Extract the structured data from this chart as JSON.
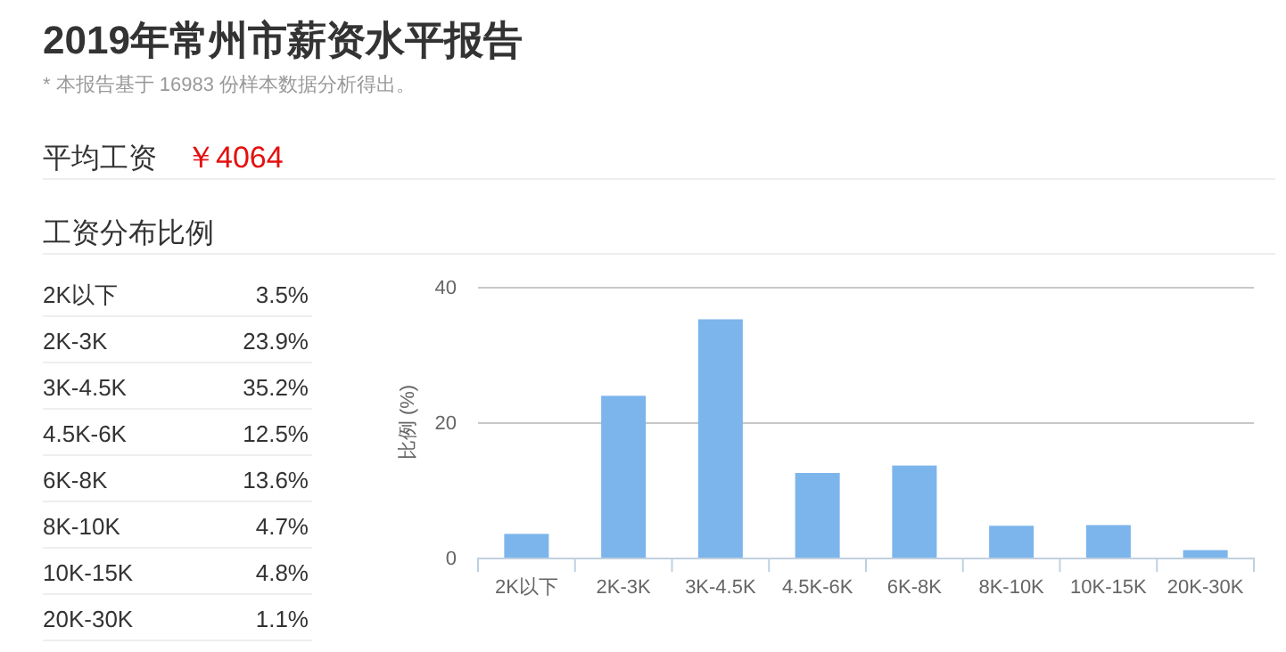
{
  "chart_data": {
    "type": "bar",
    "title": "2019年常州市薪资水平报告",
    "subtitle": "* 本报告基于 16983 份样本数据分析得出。",
    "annotations": [
      "平均工资",
      "￥4064",
      "工资分布比例",
      "3.5%",
      "23.9%",
      "35.2%",
      "12.5%",
      "13.6%",
      "4.7%",
      "4.8%",
      "1.1%"
    ],
    "ylabel": "比例 (%)",
    "categories": [
      "2K以下",
      "2K-3K",
      "3K-4.5K",
      "4.5K-6K",
      "6K-8K",
      "8K-10K",
      "10K-15K",
      "20K-30K"
    ],
    "values": [
      3.5,
      23.9,
      35.2,
      12.5,
      13.6,
      4.7,
      4.8,
      1.1
    ],
    "color": "#7cb5ec",
    "ylim": [
      0,
      40
    ],
    "yticks": [
      0,
      20,
      40
    ],
    "grid": "y"
  }
}
